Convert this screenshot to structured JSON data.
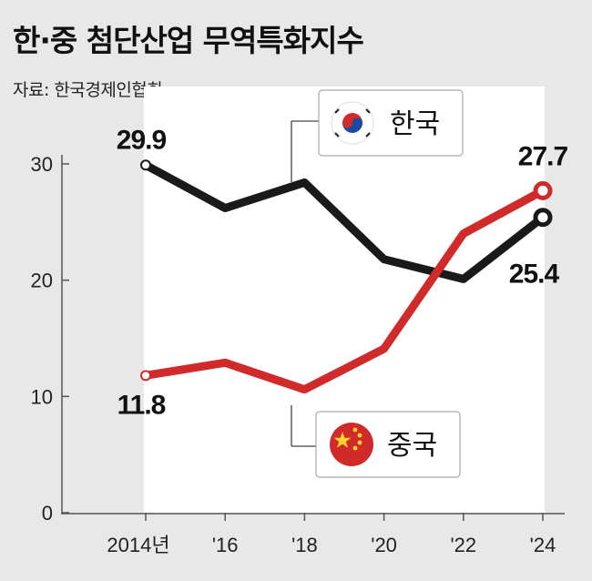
{
  "header": {
    "title": "한·중 첨단산업 무역특화지수",
    "source": "자료: 한국경제인협회"
  },
  "legend": {
    "korea": "한국",
    "china": "중국"
  },
  "colors": {
    "korea_line": "#1a1a1a",
    "china_line": "#d12a2a",
    "plot_background": "#ffffff",
    "page_background": "#e8e8e8"
  },
  "chart_data": {
    "type": "line",
    "title": "한·중 첨단산업 무역특화지수",
    "x": [
      2014,
      2016,
      2018,
      2020,
      2022,
      2024
    ],
    "x_tick_labels": [
      "2014년",
      "'16",
      "'18",
      "'20",
      "'22",
      "'24"
    ],
    "ylim": [
      0,
      30
    ],
    "y_ticks": [
      0,
      10,
      20,
      30
    ],
    "grid": false,
    "series": [
      {
        "name": "한국",
        "key": "korea",
        "values": [
          29.9,
          26.2,
          28.4,
          21.8,
          20.1,
          25.4
        ]
      },
      {
        "name": "중국",
        "key": "china",
        "values": [
          11.8,
          12.9,
          10.6,
          14.1,
          24.0,
          27.7
        ]
      }
    ],
    "data_labels": [
      {
        "series": "korea",
        "index": 0,
        "text": "29.9"
      },
      {
        "series": "korea",
        "index": 5,
        "text": "25.4"
      },
      {
        "series": "china",
        "index": 0,
        "text": "11.8"
      },
      {
        "series": "china",
        "index": 5,
        "text": "27.7"
      }
    ]
  }
}
